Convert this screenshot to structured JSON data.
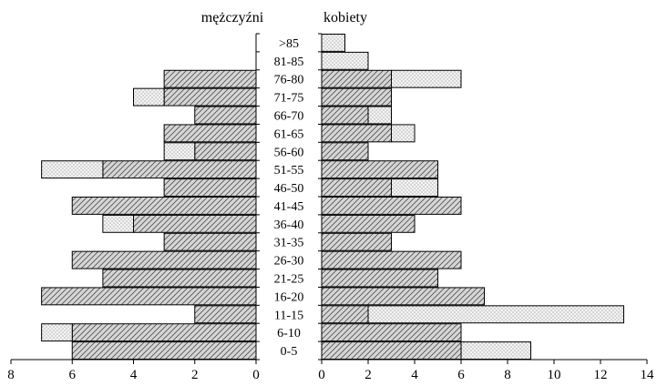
{
  "chart_data": {
    "type": "bar",
    "orientation": "horizontal",
    "layout": "population-pyramid",
    "categories": [
      "0-5",
      "6-10",
      "11-15",
      "16-20",
      "21-25",
      "26-30",
      "31-35",
      "36-40",
      "41-45",
      "46-50",
      "51-55",
      "56-60",
      "61-65",
      "66-70",
      "71-75",
      "76-80",
      "81-85",
      ">85"
    ],
    "panels": [
      {
        "key": "left",
        "title": "mężczyźni",
        "xlim": [
          0,
          8
        ],
        "ticks": [
          "8",
          "6",
          "4",
          "2",
          "0"
        ],
        "reversed": true,
        "series": [
          {
            "pattern": "hatched",
            "values": [
              6,
              6,
              2,
              7,
              5,
              6,
              3,
              4,
              6,
              3,
              5,
              2,
              3,
              2,
              3,
              3,
              0,
              0
            ]
          },
          {
            "pattern": "dotted",
            "values": [
              0,
              1,
              0,
              0,
              0,
              0,
              0,
              1,
              0,
              0,
              2,
              1,
              0,
              0,
              1,
              0,
              0,
              0
            ]
          }
        ]
      },
      {
        "key": "right",
        "title": "kobiety",
        "xlim": [
          0,
          14
        ],
        "ticks": [
          "0",
          "2",
          "4",
          "6",
          "8",
          "10",
          "12",
          "14"
        ],
        "reversed": false,
        "series": [
          {
            "pattern": "hatched",
            "values": [
              6,
              6,
              2,
              7,
              5,
              6,
              3,
              4,
              6,
              3,
              5,
              2,
              3,
              2,
              3,
              3,
              0,
              0
            ]
          },
          {
            "pattern": "dotted",
            "values": [
              3,
              0,
              11,
              0,
              0,
              0,
              0,
              0,
              0,
              2,
              0,
              0,
              1,
              1,
              0,
              3,
              2,
              1
            ]
          }
        ]
      }
    ],
    "grid": false,
    "legend": "none"
  }
}
